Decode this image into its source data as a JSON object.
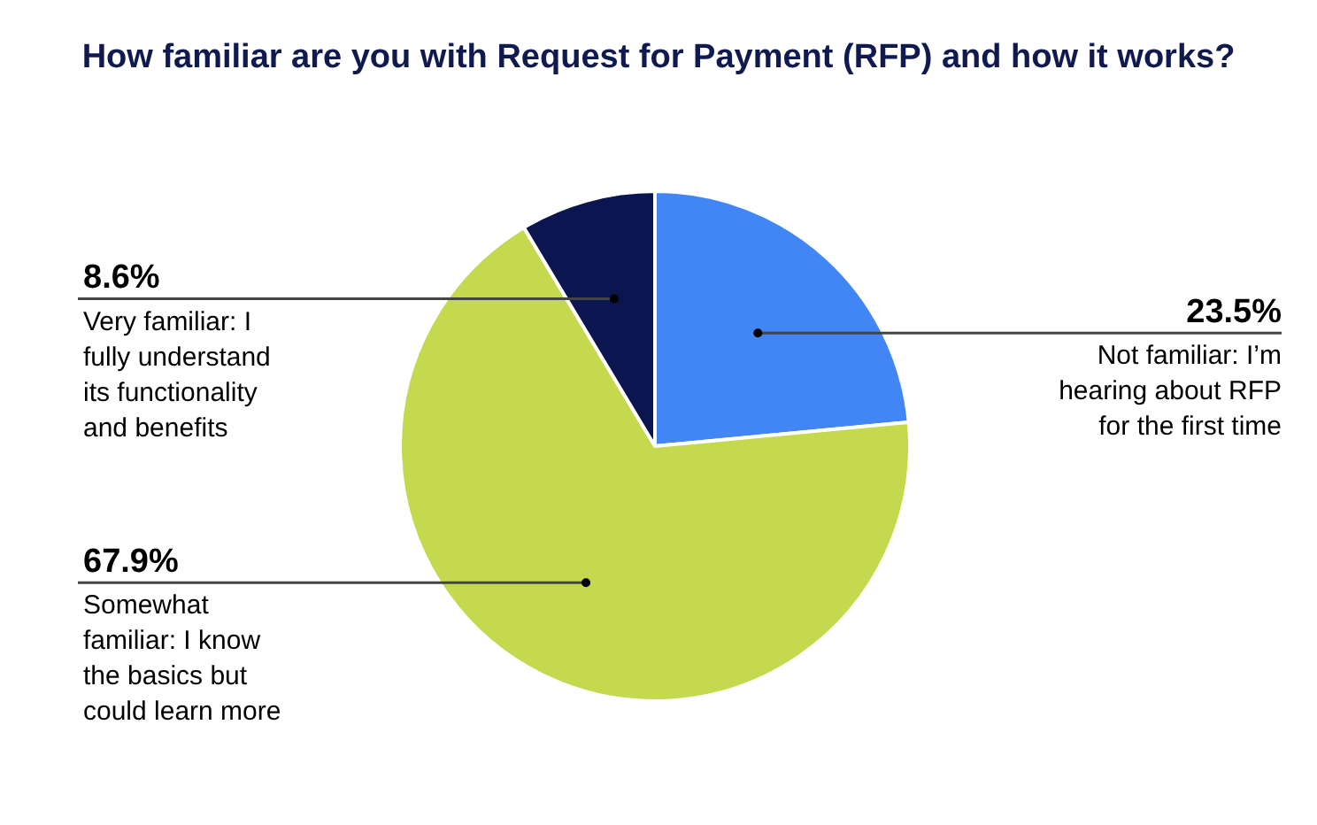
{
  "chart_data": {
    "type": "pie",
    "title": "How familiar are you with Request for Payment (RFP) and how it works?",
    "categories": [
      "Not familiar: I’m hearing about RFP for the first time",
      "Somewhat familiar: I know the basics but could learn more",
      "Very familiar: I fully understand its functionality and benefits"
    ],
    "values": [
      23.5,
      67.9,
      8.6
    ],
    "colors": [
      "#4285f4",
      "#c5d94f",
      "#0b1650"
    ],
    "value_labels": [
      "23.5%",
      "67.9%",
      "8.6%"
    ]
  }
}
